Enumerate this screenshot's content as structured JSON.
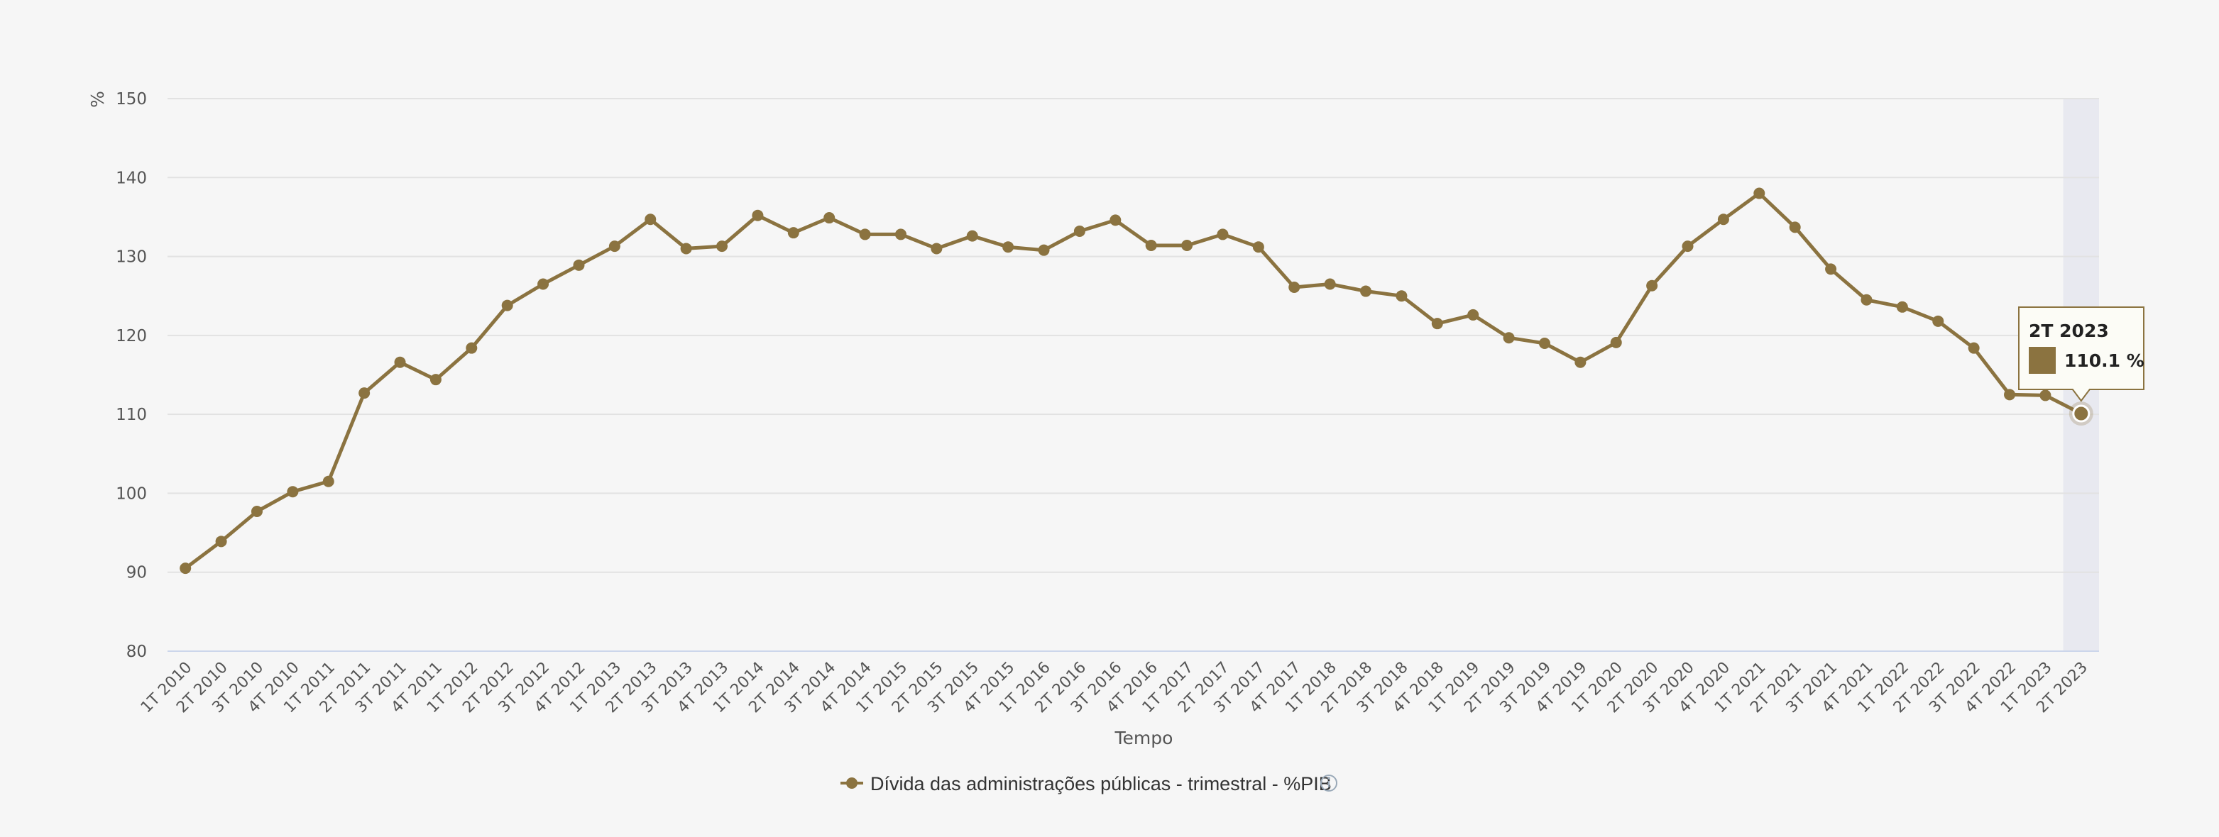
{
  "colors": {
    "series": "#8b7340",
    "background": "#f6f6f6",
    "grid": "#e2e2e2",
    "highlight": "#e8e9f0"
  },
  "chart_data": {
    "type": "line",
    "xlabel": "Tempo",
    "ylabel": "%",
    "ylim": [
      80,
      150
    ],
    "yticks": [
      80,
      90,
      100,
      110,
      120,
      130,
      140,
      150
    ],
    "grid": true,
    "legend_position": "bottom-center",
    "categories": [
      "1T 2010",
      "2T 2010",
      "3T 2010",
      "4T 2010",
      "1T 2011",
      "2T 2011",
      "3T 2011",
      "4T 2011",
      "1T 2012",
      "2T 2012",
      "3T 2012",
      "4T 2012",
      "1T 2013",
      "2T 2013",
      "3T 2013",
      "4T 2013",
      "1T 2014",
      "2T 2014",
      "3T 2014",
      "4T 2014",
      "1T 2015",
      "2T 2015",
      "3T 2015",
      "4T 2015",
      "1T 2016",
      "2T 2016",
      "3T 2016",
      "4T 2016",
      "1T 2017",
      "2T 2017",
      "3T 2017",
      "4T 2017",
      "1T 2018",
      "2T 2018",
      "3T 2018",
      "4T 2018",
      "1T 2019",
      "2T 2019",
      "3T 2019",
      "4T 2019",
      "1T 2020",
      "2T 2020",
      "3T 2020",
      "4T 2020",
      "1T 2021",
      "2T 2021",
      "3T 2021",
      "4T 2021",
      "1T 2022",
      "2T 2022",
      "3T 2022",
      "4T 2022",
      "1T 2023",
      "2T 2023"
    ],
    "series": [
      {
        "name": "Dívida das administrações públicas - trimestral - %PIB",
        "values": [
          90.5,
          93.9,
          97.7,
          100.2,
          101.5,
          112.7,
          116.6,
          114.4,
          118.4,
          123.8,
          126.5,
          128.9,
          131.3,
          134.7,
          131.0,
          131.3,
          135.2,
          133.0,
          134.9,
          132.8,
          132.8,
          131.0,
          132.6,
          131.2,
          130.8,
          133.2,
          134.6,
          131.4,
          131.4,
          132.8,
          131.2,
          126.1,
          126.5,
          125.6,
          125.0,
          121.5,
          122.6,
          119.7,
          119.0,
          116.6,
          119.1,
          126.3,
          131.3,
          134.7,
          138.0,
          133.7,
          128.4,
          124.5,
          123.6,
          121.8,
          118.4,
          112.5,
          112.4,
          110.1
        ]
      }
    ],
    "tooltip": {
      "category": "2T 2023",
      "value_label": "110.1 %"
    }
  }
}
